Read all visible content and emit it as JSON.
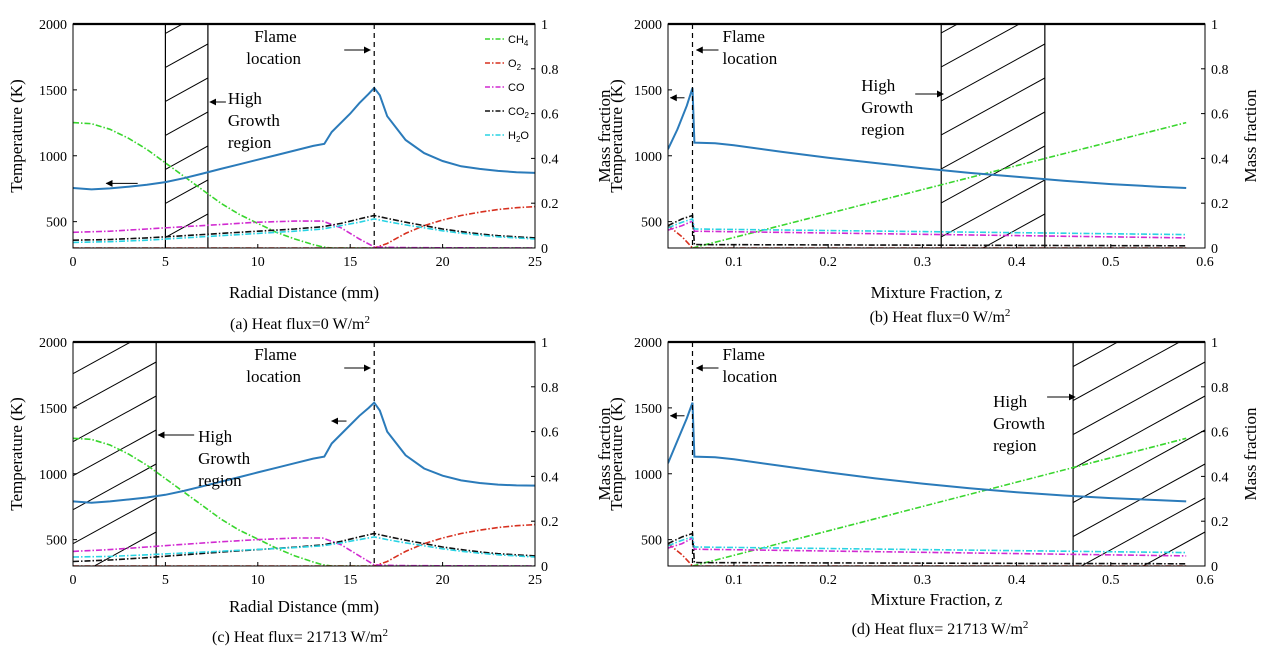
{
  "colors": {
    "temperature": "#2b7bba",
    "CH4": "#39d62e",
    "O2": "#d7301f",
    "CO": "#d12ad1",
    "CO2": "#111111",
    "H2O": "#29d3e3"
  },
  "chart_data": [
    {
      "type": "line",
      "caption": "(a) Heat flux=0 W/m",
      "caption_sup": "2",
      "xlabel": "Radial Distance (mm)",
      "ylabel": "Temperature (K)",
      "y2label": "Mass fraction",
      "xlim": [
        0,
        25
      ],
      "ylim": [
        300,
        2000
      ],
      "y2lim": [
        0,
        1
      ],
      "xticks": [
        "0",
        "5",
        "10",
        "15",
        "20",
        "25"
      ],
      "yticks": [
        "500",
        "1000",
        "1500",
        "2000"
      ],
      "y2ticks": [
        "0",
        "0.2",
        "0.4",
        "0.6",
        "0.8",
        "1"
      ],
      "flame_x": 16.3,
      "hatch_x": [
        5.0,
        7.3
      ],
      "flame_label": [
        "Flame",
        "location"
      ],
      "growth_label": [
        "High",
        "Growth",
        "region"
      ],
      "legend": [
        {
          "key": "CH4",
          "main": "CH",
          "sub": "4"
        },
        {
          "key": "O2",
          "main": "O",
          "sub": "2"
        },
        {
          "key": "CO",
          "main": "CO",
          "sub": ""
        },
        {
          "key": "CO2",
          "main": "CO",
          "sub": "2"
        },
        {
          "key": "H2O",
          "main": "H",
          "sub": "2",
          "tail": "O"
        }
      ],
      "temperature": {
        "x": [
          0,
          1,
          2,
          3,
          4,
          5,
          6,
          7,
          8,
          9,
          10,
          11,
          12,
          13,
          13.6,
          14,
          15,
          15.5,
          16,
          16.3,
          16.6,
          17,
          18,
          19,
          20,
          21,
          22,
          23,
          24,
          25
        ],
        "y": [
          755,
          745,
          752,
          765,
          780,
          800,
          830,
          865,
          900,
          935,
          970,
          1005,
          1040,
          1075,
          1090,
          1180,
          1320,
          1400,
          1470,
          1515,
          1460,
          1300,
          1120,
          1020,
          960,
          920,
          900,
          885,
          875,
          870
        ]
      },
      "series": [
        {
          "key": "CH4",
          "name": "CH4",
          "x": [
            0,
            1,
            2,
            3,
            4,
            5,
            6,
            7,
            8,
            9,
            10,
            11,
            12,
            13,
            13.5,
            14,
            25
          ],
          "y": [
            0.56,
            0.555,
            0.53,
            0.49,
            0.44,
            0.38,
            0.32,
            0.26,
            0.2,
            0.15,
            0.11,
            0.07,
            0.04,
            0.015,
            0.005,
            0,
            0
          ]
        },
        {
          "key": "O2",
          "name": "O2",
          "x": [
            0,
            15,
            16.3,
            17,
            18,
            19,
            20,
            21,
            22,
            23,
            24,
            25
          ],
          "y": [
            0,
            0,
            0,
            0.02,
            0.065,
            0.1,
            0.125,
            0.145,
            0.16,
            0.172,
            0.18,
            0.185
          ]
        },
        {
          "key": "CO",
          "name": "CO",
          "x": [
            0,
            2,
            4,
            6,
            8,
            10,
            12,
            13.5,
            14.5,
            15.5,
            16.3,
            17,
            18,
            20,
            25
          ],
          "y": [
            0.07,
            0.075,
            0.085,
            0.095,
            0.105,
            0.115,
            0.12,
            0.12,
            0.09,
            0.04,
            0.005,
            0.003,
            0.002,
            0.001,
            0
          ]
        },
        {
          "key": "CO2",
          "name": "CO2",
          "x": [
            0,
            2,
            4,
            6,
            8,
            10,
            12,
            13.5,
            14.5,
            15.5,
            16.3,
            17,
            18,
            19,
            20,
            21,
            22,
            23,
            24,
            25
          ],
          "y": [
            0.035,
            0.038,
            0.045,
            0.055,
            0.065,
            0.075,
            0.085,
            0.095,
            0.11,
            0.13,
            0.145,
            0.132,
            0.115,
            0.1,
            0.085,
            0.073,
            0.063,
            0.055,
            0.05,
            0.045
          ]
        },
        {
          "key": "H2O",
          "name": "H2O",
          "x": [
            0,
            2,
            4,
            6,
            8,
            10,
            12,
            13.5,
            14.5,
            15.5,
            16.3,
            17,
            18,
            19,
            20,
            21,
            22,
            23,
            24,
            25
          ],
          "y": [
            0.025,
            0.028,
            0.035,
            0.045,
            0.055,
            0.065,
            0.075,
            0.085,
            0.1,
            0.115,
            0.13,
            0.118,
            0.103,
            0.09,
            0.077,
            0.066,
            0.057,
            0.05,
            0.045,
            0.04
          ]
        }
      ]
    },
    {
      "type": "line",
      "caption": "(b) Heat flux=0 W/m",
      "caption_sup": "2",
      "xlabel": "Mixture Fraction, z",
      "ylabel": "Temperature (K)",
      "y2label": "Mass fraction",
      "xlim": [
        0.03,
        0.6
      ],
      "ylim": [
        300,
        2000
      ],
      "y2lim": [
        0,
        1
      ],
      "xticks": [
        "0.1",
        "0.2",
        "0.3",
        "0.4",
        "0.5",
        "0.6"
      ],
      "xtick_values": [
        0.1,
        0.2,
        0.3,
        0.4,
        0.5,
        0.6
      ],
      "yticks": [
        "500",
        "1000",
        "1500",
        "2000"
      ],
      "y2ticks": [
        "0",
        "0.2",
        "0.4",
        "0.6",
        "0.8",
        "1"
      ],
      "flame_x": 0.056,
      "hatch_x": [
        0.32,
        0.43
      ],
      "flame_label": [
        "Flame",
        "location"
      ],
      "growth_label": [
        "High",
        "Growth",
        "region"
      ],
      "temperature": {
        "x": [
          0.03,
          0.04,
          0.05,
          0.056,
          0.058,
          0.08,
          0.1,
          0.15,
          0.2,
          0.25,
          0.3,
          0.35,
          0.4,
          0.45,
          0.5,
          0.55,
          0.58
        ],
        "y": [
          1050,
          1200,
          1380,
          1515,
          1100,
          1095,
          1080,
          1030,
          985,
          945,
          905,
          870,
          840,
          810,
          785,
          765,
          755
        ]
      },
      "series": [
        {
          "key": "CH4",
          "name": "CH4",
          "x": [
            0.056,
            0.58
          ],
          "y": [
            0,
            0.56
          ]
        },
        {
          "key": "O2",
          "name": "O2",
          "x": [
            0.03,
            0.045,
            0.056,
            0.58
          ],
          "y": [
            0.1,
            0.05,
            0,
            0
          ]
        },
        {
          "key": "CO",
          "name": "CO",
          "x": [
            0.03,
            0.045,
            0.056,
            0.058,
            0.58
          ],
          "y": [
            0.08,
            0.1,
            0.12,
            0.075,
            0.045
          ]
        },
        {
          "key": "CO2",
          "name": "CO2",
          "x": [
            0.03,
            0.045,
            0.056,
            0.058,
            0.58
          ],
          "y": [
            0.1,
            0.13,
            0.145,
            0.015,
            0.01
          ]
        },
        {
          "key": "H2O",
          "name": "H2O",
          "x": [
            0.03,
            0.045,
            0.056,
            0.058,
            0.58
          ],
          "y": [
            0.09,
            0.115,
            0.13,
            0.085,
            0.06
          ]
        }
      ]
    },
    {
      "type": "line",
      "caption": "(c) Heat flux= 21713 W/m",
      "caption_sup": "2",
      "xlabel": "Radial Distance (mm)",
      "ylabel": "Temperature (K)",
      "y2label": "Mass fraction",
      "xlim": [
        0,
        25
      ],
      "ylim": [
        300,
        2000
      ],
      "y2lim": [
        0,
        1
      ],
      "xticks": [
        "0",
        "5",
        "10",
        "15",
        "20",
        "25"
      ],
      "yticks": [
        "500",
        "1000",
        "1500",
        "2000"
      ],
      "y2ticks": [
        "0",
        "0.2",
        "0.4",
        "0.6",
        "0.8",
        "1"
      ],
      "flame_x": 16.3,
      "hatch_x": [
        0,
        4.5
      ],
      "flame_label": [
        "Flame",
        "location"
      ],
      "growth_label": [
        "High",
        "Growth",
        "region"
      ],
      "temperature": {
        "x": [
          0,
          1,
          2,
          3,
          4,
          5,
          6,
          7,
          8,
          9,
          10,
          11,
          12,
          13,
          13.6,
          14,
          15,
          15.5,
          16,
          16.3,
          16.6,
          17,
          18,
          19,
          20,
          21,
          22,
          23,
          24,
          25
        ],
        "y": [
          790,
          780,
          790,
          805,
          820,
          840,
          870,
          905,
          940,
          975,
          1010,
          1045,
          1080,
          1115,
          1130,
          1230,
          1370,
          1440,
          1500,
          1540,
          1480,
          1320,
          1140,
          1040,
          985,
          950,
          930,
          918,
          912,
          910
        ]
      },
      "series": [
        {
          "key": "CH4",
          "name": "CH4",
          "x": [
            0,
            1,
            2,
            3,
            4,
            5,
            6,
            7,
            8,
            9,
            10,
            11,
            12,
            13,
            13.5,
            14,
            25
          ],
          "y": [
            0.57,
            0.565,
            0.54,
            0.5,
            0.45,
            0.39,
            0.33,
            0.27,
            0.21,
            0.16,
            0.12,
            0.08,
            0.045,
            0.018,
            0.006,
            0,
            0
          ]
        },
        {
          "key": "O2",
          "name": "O2",
          "x": [
            0,
            15,
            16.3,
            17,
            18,
            19,
            20,
            21,
            22,
            23,
            24,
            25
          ],
          "y": [
            0,
            0,
            0,
            0.02,
            0.065,
            0.1,
            0.125,
            0.145,
            0.16,
            0.172,
            0.18,
            0.185
          ]
        },
        {
          "key": "CO",
          "name": "CO",
          "x": [
            0,
            2,
            4,
            6,
            8,
            10,
            12,
            13.5,
            14.5,
            15.5,
            16.3,
            17,
            18,
            20,
            25
          ],
          "y": [
            0.065,
            0.073,
            0.085,
            0.097,
            0.108,
            0.118,
            0.125,
            0.125,
            0.095,
            0.045,
            0.005,
            0.003,
            0.002,
            0.001,
            0
          ]
        },
        {
          "key": "CO2",
          "name": "CO2",
          "x": [
            0,
            2,
            4,
            6,
            8,
            10,
            12,
            13.5,
            14.5,
            15.5,
            16.3,
            17,
            18,
            19,
            20,
            21,
            22,
            23,
            24,
            25
          ],
          "y": [
            0.02,
            0.027,
            0.037,
            0.05,
            0.062,
            0.073,
            0.084,
            0.094,
            0.11,
            0.13,
            0.145,
            0.132,
            0.115,
            0.1,
            0.085,
            0.073,
            0.063,
            0.055,
            0.05,
            0.045
          ]
        },
        {
          "key": "H2O",
          "name": "H2O",
          "x": [
            0,
            2,
            4,
            6,
            8,
            10,
            12,
            13.5,
            14.5,
            15.5,
            16.3,
            17,
            18,
            19,
            20,
            21,
            22,
            23,
            24,
            25
          ],
          "y": [
            0.04,
            0.043,
            0.05,
            0.058,
            0.066,
            0.074,
            0.082,
            0.09,
            0.103,
            0.118,
            0.13,
            0.118,
            0.103,
            0.09,
            0.077,
            0.066,
            0.057,
            0.05,
            0.045,
            0.04
          ]
        }
      ]
    },
    {
      "type": "line",
      "caption": "(d) Heat flux= 21713 W/m",
      "caption_sup": "2",
      "xlabel": "Mixture Fraction, z",
      "ylabel": "Temperature (K)",
      "y2label": "Mass fraction",
      "xlim": [
        0.03,
        0.6
      ],
      "ylim": [
        300,
        2000
      ],
      "y2lim": [
        0,
        1
      ],
      "xticks": [
        "0.1",
        "0.2",
        "0.3",
        "0.4",
        "0.5",
        "0.6"
      ],
      "xtick_values": [
        0.1,
        0.2,
        0.3,
        0.4,
        0.5,
        0.6
      ],
      "yticks": [
        "500",
        "1000",
        "1500",
        "2000"
      ],
      "y2ticks": [
        "0",
        "0.2",
        "0.4",
        "0.6",
        "0.8",
        "1"
      ],
      "flame_x": 0.056,
      "hatch_x": [
        0.46,
        0.6
      ],
      "flame_label": [
        "Flame",
        "location"
      ],
      "growth_label": [
        "High",
        "Growth",
        "region"
      ],
      "temperature": {
        "x": [
          0.03,
          0.04,
          0.05,
          0.056,
          0.058,
          0.08,
          0.1,
          0.15,
          0.2,
          0.25,
          0.3,
          0.35,
          0.4,
          0.45,
          0.5,
          0.55,
          0.58
        ],
        "y": [
          1080,
          1250,
          1420,
          1540,
          1130,
          1125,
          1110,
          1060,
          1010,
          965,
          925,
          890,
          860,
          835,
          815,
          800,
          790
        ]
      },
      "series": [
        {
          "key": "CH4",
          "name": "CH4",
          "x": [
            0.056,
            0.58
          ],
          "y": [
            0,
            0.57
          ]
        },
        {
          "key": "O2",
          "name": "O2",
          "x": [
            0.03,
            0.045,
            0.056,
            0.58
          ],
          "y": [
            0.1,
            0.05,
            0,
            0
          ]
        },
        {
          "key": "CO",
          "name": "CO",
          "x": [
            0.03,
            0.045,
            0.056,
            0.058,
            0.58
          ],
          "y": [
            0.08,
            0.1,
            0.125,
            0.075,
            0.045
          ]
        },
        {
          "key": "CO2",
          "name": "CO2",
          "x": [
            0.03,
            0.045,
            0.056,
            0.058,
            0.58
          ],
          "y": [
            0.1,
            0.13,
            0.145,
            0.015,
            0.01
          ]
        },
        {
          "key": "H2O",
          "name": "H2O",
          "x": [
            0.03,
            0.045,
            0.056,
            0.058,
            0.58
          ],
          "y": [
            0.09,
            0.115,
            0.13,
            0.085,
            0.06
          ]
        }
      ]
    }
  ]
}
